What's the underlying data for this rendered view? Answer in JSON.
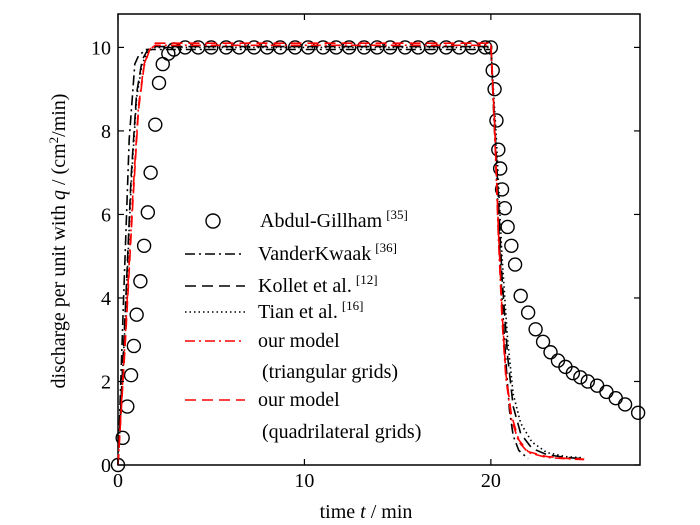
{
  "chart_data": {
    "type": "line",
    "xlabel": {
      "prefix": "time ",
      "var": "t",
      "suffix": " / min"
    },
    "ylabel": {
      "prefix": "discharge per unit with ",
      "var": "q",
      "suffix": " / (cm",
      "sup": "2",
      "tail": "/min)"
    },
    "xlim": [
      0,
      28
    ],
    "ylim": [
      0,
      10.8
    ],
    "xticks": [
      0,
      10,
      20
    ],
    "yticks": [
      0,
      2,
      4,
      6,
      8,
      10
    ],
    "legend_position": "center-left",
    "series": [
      {
        "name": "Abdul-Gillham",
        "ref": "[35]",
        "style": "circle",
        "color": "#000000",
        "x": [
          0,
          0.25,
          0.5,
          0.7,
          0.85,
          1.0,
          1.2,
          1.4,
          1.6,
          1.75,
          2.0,
          2.2,
          2.4,
          2.7,
          3.0,
          3.6,
          4.3,
          5.0,
          5.8,
          6.5,
          7.3,
          8.0,
          8.7,
          9.5,
          10.2,
          11.0,
          11.7,
          12.4,
          13.2,
          13.9,
          14.6,
          15.4,
          16.1,
          16.8,
          17.6,
          18.3,
          19.0,
          19.7,
          20.0,
          20.1,
          20.2,
          20.3,
          20.4,
          20.5,
          20.6,
          20.75,
          20.9,
          21.1,
          21.3,
          21.6,
          22.0,
          22.4,
          22.8,
          23.2,
          23.6,
          24.0,
          24.4,
          24.8,
          25.2,
          25.7,
          26.2,
          26.7,
          27.2,
          27.9
        ],
        "y": [
          0,
          0.65,
          1.4,
          2.15,
          2.85,
          3.6,
          4.4,
          5.25,
          6.05,
          7.0,
          8.15,
          9.15,
          9.6,
          9.85,
          9.95,
          10.0,
          10.0,
          10.0,
          10.0,
          10.0,
          10.0,
          10.0,
          10.0,
          10.0,
          10.0,
          10.0,
          10.0,
          10.0,
          10.0,
          10.0,
          10.0,
          10.0,
          10.0,
          10.0,
          10.0,
          10.0,
          10.0,
          10.0,
          10.0,
          9.45,
          9.0,
          8.25,
          7.55,
          7.1,
          6.6,
          6.15,
          5.7,
          5.25,
          4.8,
          4.05,
          3.65,
          3.25,
          2.95,
          2.7,
          2.5,
          2.35,
          2.2,
          2.1,
          2.0,
          1.9,
          1.75,
          1.6,
          1.45,
          1.25
        ]
      },
      {
        "name": "VanderKwaak",
        "ref": "[36]",
        "style": "dashdot",
        "color": "#000000",
        "x": [
          0,
          0.3,
          0.6,
          0.9,
          1.1,
          1.5,
          20.0,
          20.3,
          20.6,
          20.8,
          21.0,
          21.2,
          21.5,
          22.0
        ],
        "y": [
          0,
          4.0,
          7.8,
          9.6,
          9.8,
          9.95,
          9.95,
          7.0,
          4.0,
          2.5,
          1.3,
          0.7,
          0.35,
          0.15
        ]
      },
      {
        "name": "Kollet et al.",
        "ref": "[12]",
        "style": "dashed",
        "color": "#000000",
        "x": [
          0,
          0.4,
          0.7,
          1.0,
          1.3,
          1.6,
          2.0,
          20.0,
          20.3,
          20.6,
          20.9,
          21.2,
          21.6,
          22.2,
          23.0,
          24.0,
          25.0
        ],
        "y": [
          0,
          3.8,
          6.9,
          8.9,
          9.7,
          9.95,
          10.02,
          10.02,
          7.4,
          4.5,
          2.6,
          1.4,
          0.75,
          0.4,
          0.25,
          0.18,
          0.15
        ]
      },
      {
        "name": "Tian et al.",
        "ref": "[16]",
        "style": "dotted",
        "color": "#000000",
        "x": [
          0,
          0.4,
          0.7,
          1.0,
          1.3,
          1.6,
          2.0,
          20.0,
          20.3,
          20.6,
          20.9,
          21.2,
          21.6,
          22.2,
          23.0,
          24.0,
          25.0
        ],
        "y": [
          0,
          3.6,
          6.7,
          8.8,
          9.6,
          9.9,
          10.0,
          10.0,
          7.8,
          5.0,
          3.0,
          1.7,
          1.0,
          0.55,
          0.3,
          0.2,
          0.17
        ]
      },
      {
        "name": "our model",
        "name2": "(triangular grids)",
        "style": "dashdot",
        "color": "#ff0000",
        "x": [
          0,
          0.4,
          0.8,
          1.1,
          1.4,
          1.7,
          2.0,
          20.0,
          20.2,
          20.4,
          20.6,
          20.8,
          21.1,
          21.5,
          22.0,
          23.0,
          24.0,
          25.0
        ],
        "y": [
          0,
          3.2,
          6.5,
          8.6,
          9.6,
          9.95,
          10.05,
          10.05,
          8.0,
          5.5,
          3.5,
          2.1,
          1.1,
          0.55,
          0.3,
          0.18,
          0.15,
          0.13
        ]
      },
      {
        "name": "our model",
        "name2": "(quadrilateral grids)",
        "style": "dashed",
        "color": "#ff0000",
        "x": [
          0,
          0.4,
          0.8,
          1.1,
          1.4,
          1.7,
          2.0,
          20.0,
          20.2,
          20.4,
          20.6,
          20.8,
          21.1,
          21.5,
          22.0,
          23.0,
          24.0,
          25.0
        ],
        "y": [
          0,
          3.0,
          6.3,
          8.5,
          9.55,
          9.95,
          10.1,
          10.1,
          8.2,
          5.7,
          3.7,
          2.2,
          1.2,
          0.6,
          0.32,
          0.2,
          0.16,
          0.14
        ]
      }
    ]
  }
}
